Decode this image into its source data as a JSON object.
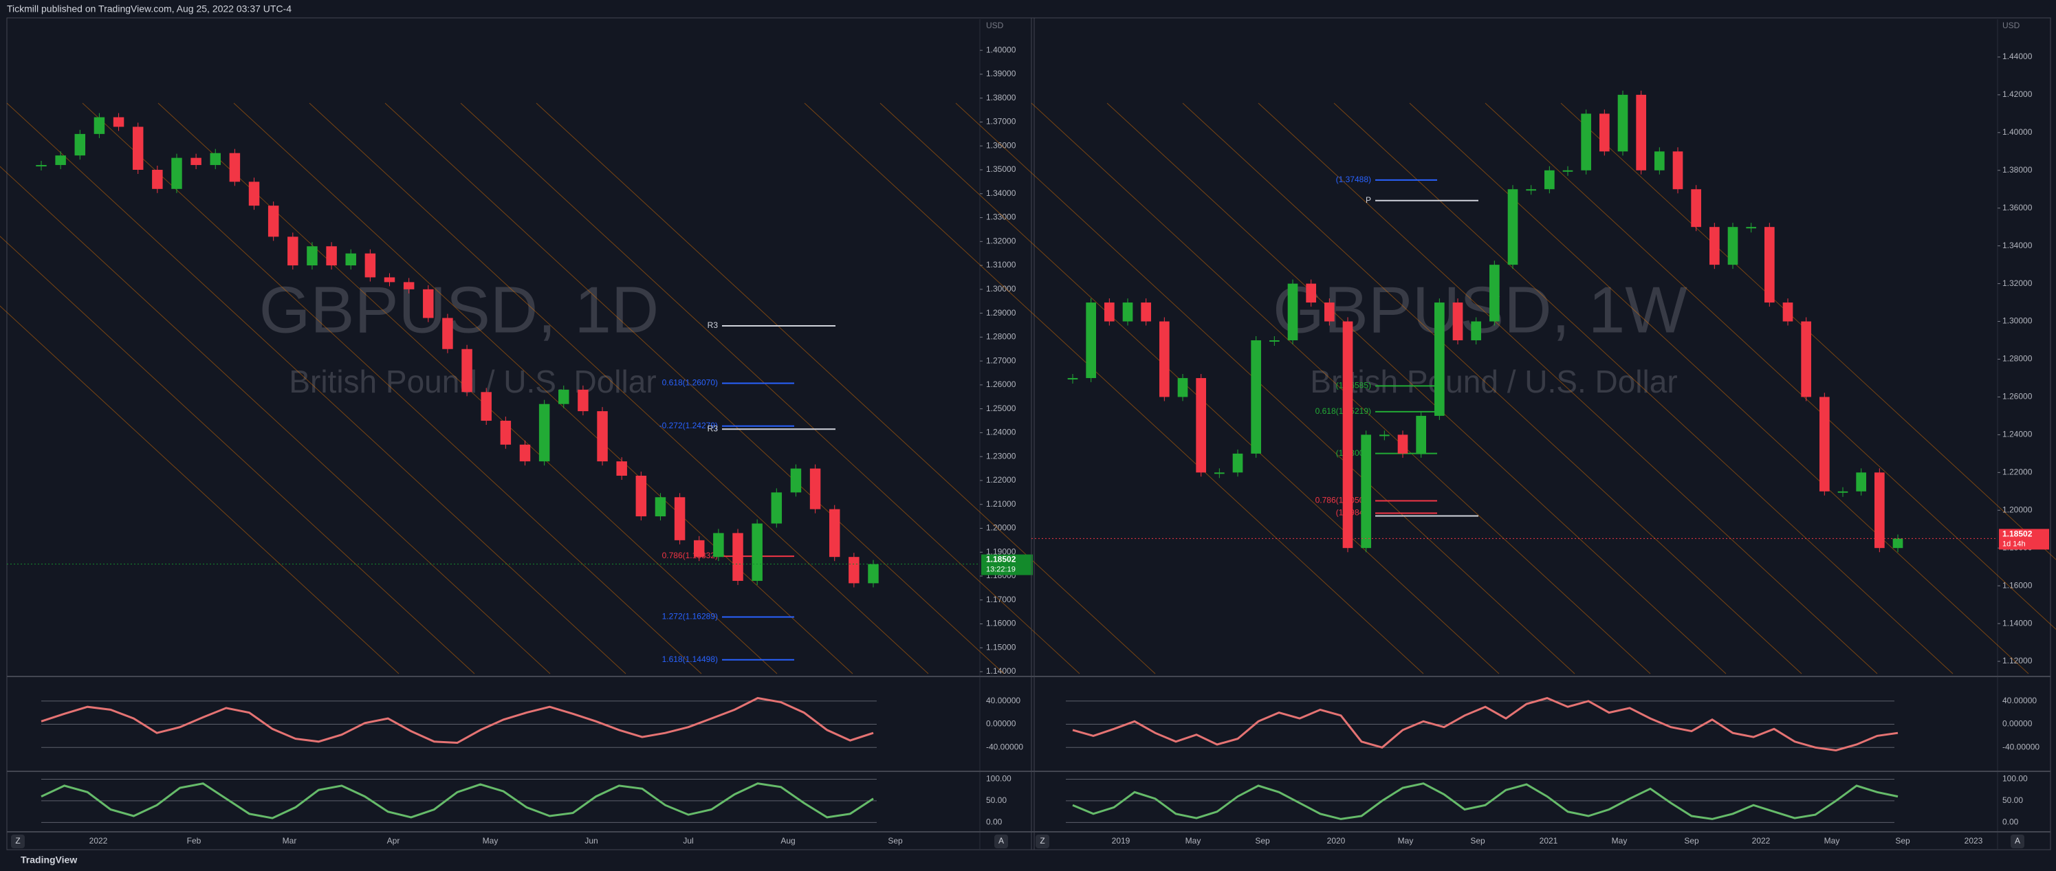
{
  "header": {
    "publisher": "Tickmill published on TradingView.com, Aug 25, 2022 03:37 UTC-4"
  },
  "footer": {
    "brand": "TradingView"
  },
  "panels": [
    {
      "type": "candlestick",
      "symbol": "GBPUSD, 1D",
      "description": "British Pound / U.S. Dollar",
      "currency": "USD",
      "ylim": [
        1.138,
        1.413
      ],
      "yticks": [
        {
          "value": 1.14,
          "label": "1.14000"
        },
        {
          "value": 1.15,
          "label": "1.15000"
        },
        {
          "value": 1.16,
          "label": "1.16000"
        },
        {
          "value": 1.17,
          "label": "1.17000"
        },
        {
          "value": 1.18,
          "label": "1.18000"
        },
        {
          "value": 1.19,
          "label": "1.19000"
        },
        {
          "value": 1.2,
          "label": "1.20000"
        },
        {
          "value": 1.21,
          "label": "1.21000"
        },
        {
          "value": 1.22,
          "label": "1.22000"
        },
        {
          "value": 1.23,
          "label": "1.23000"
        },
        {
          "value": 1.24,
          "label": "1.24000"
        },
        {
          "value": 1.25,
          "label": "1.25000"
        },
        {
          "value": 1.26,
          "label": "1.26000"
        },
        {
          "value": 1.27,
          "label": "1.27000"
        },
        {
          "value": 1.28,
          "label": "1.28000"
        },
        {
          "value": 1.29,
          "label": "1.29000"
        },
        {
          "value": 1.3,
          "label": "1.30000"
        },
        {
          "value": 1.31,
          "label": "1.31000"
        },
        {
          "value": 1.32,
          "label": "1.32000"
        },
        {
          "value": 1.33,
          "label": "1.33000"
        },
        {
          "value": 1.34,
          "label": "1.34000"
        },
        {
          "value": 1.35,
          "label": "1.35000"
        },
        {
          "value": 1.36,
          "label": "1.36000"
        },
        {
          "value": 1.37,
          "label": "1.37000"
        },
        {
          "value": 1.38,
          "label": "1.38000"
        },
        {
          "value": 1.39,
          "label": "1.39000"
        },
        {
          "value": 1.4,
          "label": "1.40000"
        }
      ],
      "time_labels": [
        "2022",
        "Feb",
        "Mar",
        "Apr",
        "May",
        "Jun",
        "Jul",
        "Aug",
        "Sep"
      ],
      "closes": [
        1.352,
        1.356,
        1.365,
        1.372,
        1.368,
        1.35,
        1.342,
        1.355,
        1.352,
        1.357,
        1.345,
        1.335,
        1.322,
        1.31,
        1.318,
        1.31,
        1.315,
        1.305,
        1.303,
        1.3,
        1.288,
        1.275,
        1.257,
        1.245,
        1.235,
        1.228,
        1.252,
        1.258,
        1.249,
        1.228,
        1.222,
        1.205,
        1.213,
        1.195,
        1.188,
        1.198,
        1.178,
        1.202,
        1.215,
        1.225,
        1.208,
        1.188,
        1.177,
        1.185
      ],
      "up_color": "#22ab35",
      "down_color": "#f23645",
      "last_price": 1.18502,
      "last_price_note": "13:22:19",
      "last_price_color": "#138a2b",
      "levels": [
        {
          "label": "0.618(1.26070)",
          "value": 1.2607,
          "color": "#2962ff"
        },
        {
          "label": "-0.272(1.24279)",
          "value": 1.24279,
          "color": "#2962ff"
        },
        {
          "label": "0.786(1.18832)",
          "value": 1.18832,
          "color": "#f23645"
        },
        {
          "label": "1.272(1.16289)",
          "value": 1.16289,
          "color": "#2962ff"
        },
        {
          "label": "1.618(1.14498)",
          "value": 1.14498,
          "color": "#2962ff"
        },
        {
          "label": "R3",
          "value": 1.2847,
          "color": "#131722"
        },
        {
          "label": "R3",
          "value": 1.2415,
          "color": "#131722"
        }
      ],
      "oscillator": {
        "ylim": [
          -80,
          80
        ],
        "yticks": [
          {
            "value": 40,
            "label": "40.00000"
          },
          {
            "value": 0,
            "label": "0.00000"
          },
          {
            "value": -40,
            "label": "-40.00000"
          }
        ],
        "values": [
          5,
          18,
          30,
          25,
          10,
          -15,
          -5,
          12,
          28,
          20,
          -8,
          -25,
          -30,
          -18,
          2,
          10,
          -12,
          -30,
          -32,
          -10,
          8,
          20,
          30,
          18,
          5,
          -10,
          -22,
          -15,
          -5,
          10,
          25,
          45,
          38,
          20,
          -10,
          -28,
          -15
        ]
      },
      "stochastic": {
        "ylim": [
          -20,
          115
        ],
        "yticks": [
          {
            "value": 100,
            "label": "100.00"
          },
          {
            "value": 50,
            "label": "50.00"
          },
          {
            "value": 0,
            "label": "0.00"
          }
        ],
        "values": [
          60,
          85,
          70,
          30,
          15,
          40,
          80,
          90,
          55,
          20,
          10,
          35,
          75,
          85,
          60,
          25,
          12,
          30,
          70,
          88,
          72,
          35,
          15,
          22,
          60,
          85,
          78,
          40,
          18,
          30,
          65,
          90,
          82,
          45,
          12,
          20,
          55
        ]
      },
      "scale_buttons": [
        "Z",
        "A"
      ]
    },
    {
      "type": "candlestick",
      "symbol": "GBPUSD, 1W",
      "description": "British Pound / U.S. Dollar",
      "currency": "USD",
      "ylim": [
        1.112,
        1.46
      ],
      "yticks": [
        {
          "value": 1.12,
          "label": "1.12000"
        },
        {
          "value": 1.14,
          "label": "1.14000"
        },
        {
          "value": 1.16,
          "label": "1.16000"
        },
        {
          "value": 1.18,
          "label": "1.18000"
        },
        {
          "value": 1.2,
          "label": "1.20000"
        },
        {
          "value": 1.22,
          "label": "1.22000"
        },
        {
          "value": 1.24,
          "label": "1.24000"
        },
        {
          "value": 1.26,
          "label": "1.26000"
        },
        {
          "value": 1.28,
          "label": "1.28000"
        },
        {
          "value": 1.3,
          "label": "1.30000"
        },
        {
          "value": 1.32,
          "label": "1.32000"
        },
        {
          "value": 1.34,
          "label": "1.34000"
        },
        {
          "value": 1.36,
          "label": "1.36000"
        },
        {
          "value": 1.38,
          "label": "1.38000"
        },
        {
          "value": 1.4,
          "label": "1.40000"
        },
        {
          "value": 1.42,
          "label": "1.42000"
        },
        {
          "value": 1.44,
          "label": "1.44000"
        }
      ],
      "time_labels": [
        "2019",
        "May",
        "Sep",
        "2020",
        "May",
        "Sep",
        "2021",
        "May",
        "Sep",
        "2022",
        "May",
        "Sep",
        "2023"
      ],
      "closes": [
        1.27,
        1.31,
        1.3,
        1.31,
        1.3,
        1.26,
        1.27,
        1.22,
        1.22,
        1.23,
        1.29,
        1.29,
        1.32,
        1.31,
        1.3,
        1.18,
        1.24,
        1.24,
        1.23,
        1.25,
        1.31,
        1.29,
        1.3,
        1.33,
        1.37,
        1.37,
        1.38,
        1.38,
        1.41,
        1.39,
        1.42,
        1.38,
        1.39,
        1.37,
        1.35,
        1.33,
        1.35,
        1.35,
        1.31,
        1.3,
        1.26,
        1.21,
        1.21,
        1.22,
        1.18,
        1.185
      ],
      "up_color": "#22ab35",
      "down_color": "#f23645",
      "last_price": 1.18502,
      "last_price_note": "1d 14h",
      "last_price_color": "#f23645",
      "levels": [
        {
          "label": "0.618(1.25219)",
          "value": 1.25219,
          "color": "#22ab35"
        },
        {
          "label": "0.786(1.20501)",
          "value": 1.20501,
          "color": "#f23645"
        },
        {
          "label": "(1.37488)",
          "value": 1.37488,
          "color": "#2962ff"
        },
        {
          "label": "(1.26585)",
          "value": 1.26585,
          "color": "#22ab35"
        },
        {
          "label": "(1.23009)",
          "value": 1.23009,
          "color": "#22ab35"
        },
        {
          "label": "(1.19847)",
          "value": 1.19847,
          "color": "#f23645"
        },
        {
          "label": "P",
          "value": 1.364,
          "color": "#131722"
        },
        {
          "label": "S1",
          "value": 1.197,
          "color": "#131722"
        }
      ],
      "oscillator": {
        "ylim": [
          -80,
          80
        ],
        "yticks": [
          {
            "value": 40,
            "label": "40.00000"
          },
          {
            "value": 0,
            "label": "0.00000"
          },
          {
            "value": -40,
            "label": "-40.00000"
          }
        ],
        "values": [
          -10,
          -20,
          -8,
          5,
          -15,
          -30,
          -18,
          -35,
          -25,
          5,
          20,
          10,
          25,
          15,
          -30,
          -40,
          -10,
          5,
          -5,
          15,
          30,
          10,
          35,
          45,
          30,
          40,
          20,
          28,
          10,
          -5,
          -12,
          8,
          -15,
          -22,
          -8,
          -30,
          -40,
          -45,
          -35,
          -20,
          -15
        ]
      },
      "stochastic": {
        "ylim": [
          -20,
          115
        ],
        "yticks": [
          {
            "value": 100,
            "label": "100.00"
          },
          {
            "value": 50,
            "label": "50.00"
          },
          {
            "value": 0,
            "label": "0.00"
          }
        ],
        "values": [
          40,
          20,
          35,
          70,
          55,
          20,
          10,
          25,
          60,
          85,
          70,
          45,
          20,
          8,
          15,
          50,
          80,
          90,
          65,
          30,
          40,
          75,
          88,
          60,
          25,
          15,
          30,
          55,
          78,
          45,
          15,
          8,
          20,
          40,
          25,
          10,
          18,
          50,
          85,
          70,
          60
        ]
      },
      "scale_buttons": [
        "Z",
        "A"
      ]
    }
  ]
}
